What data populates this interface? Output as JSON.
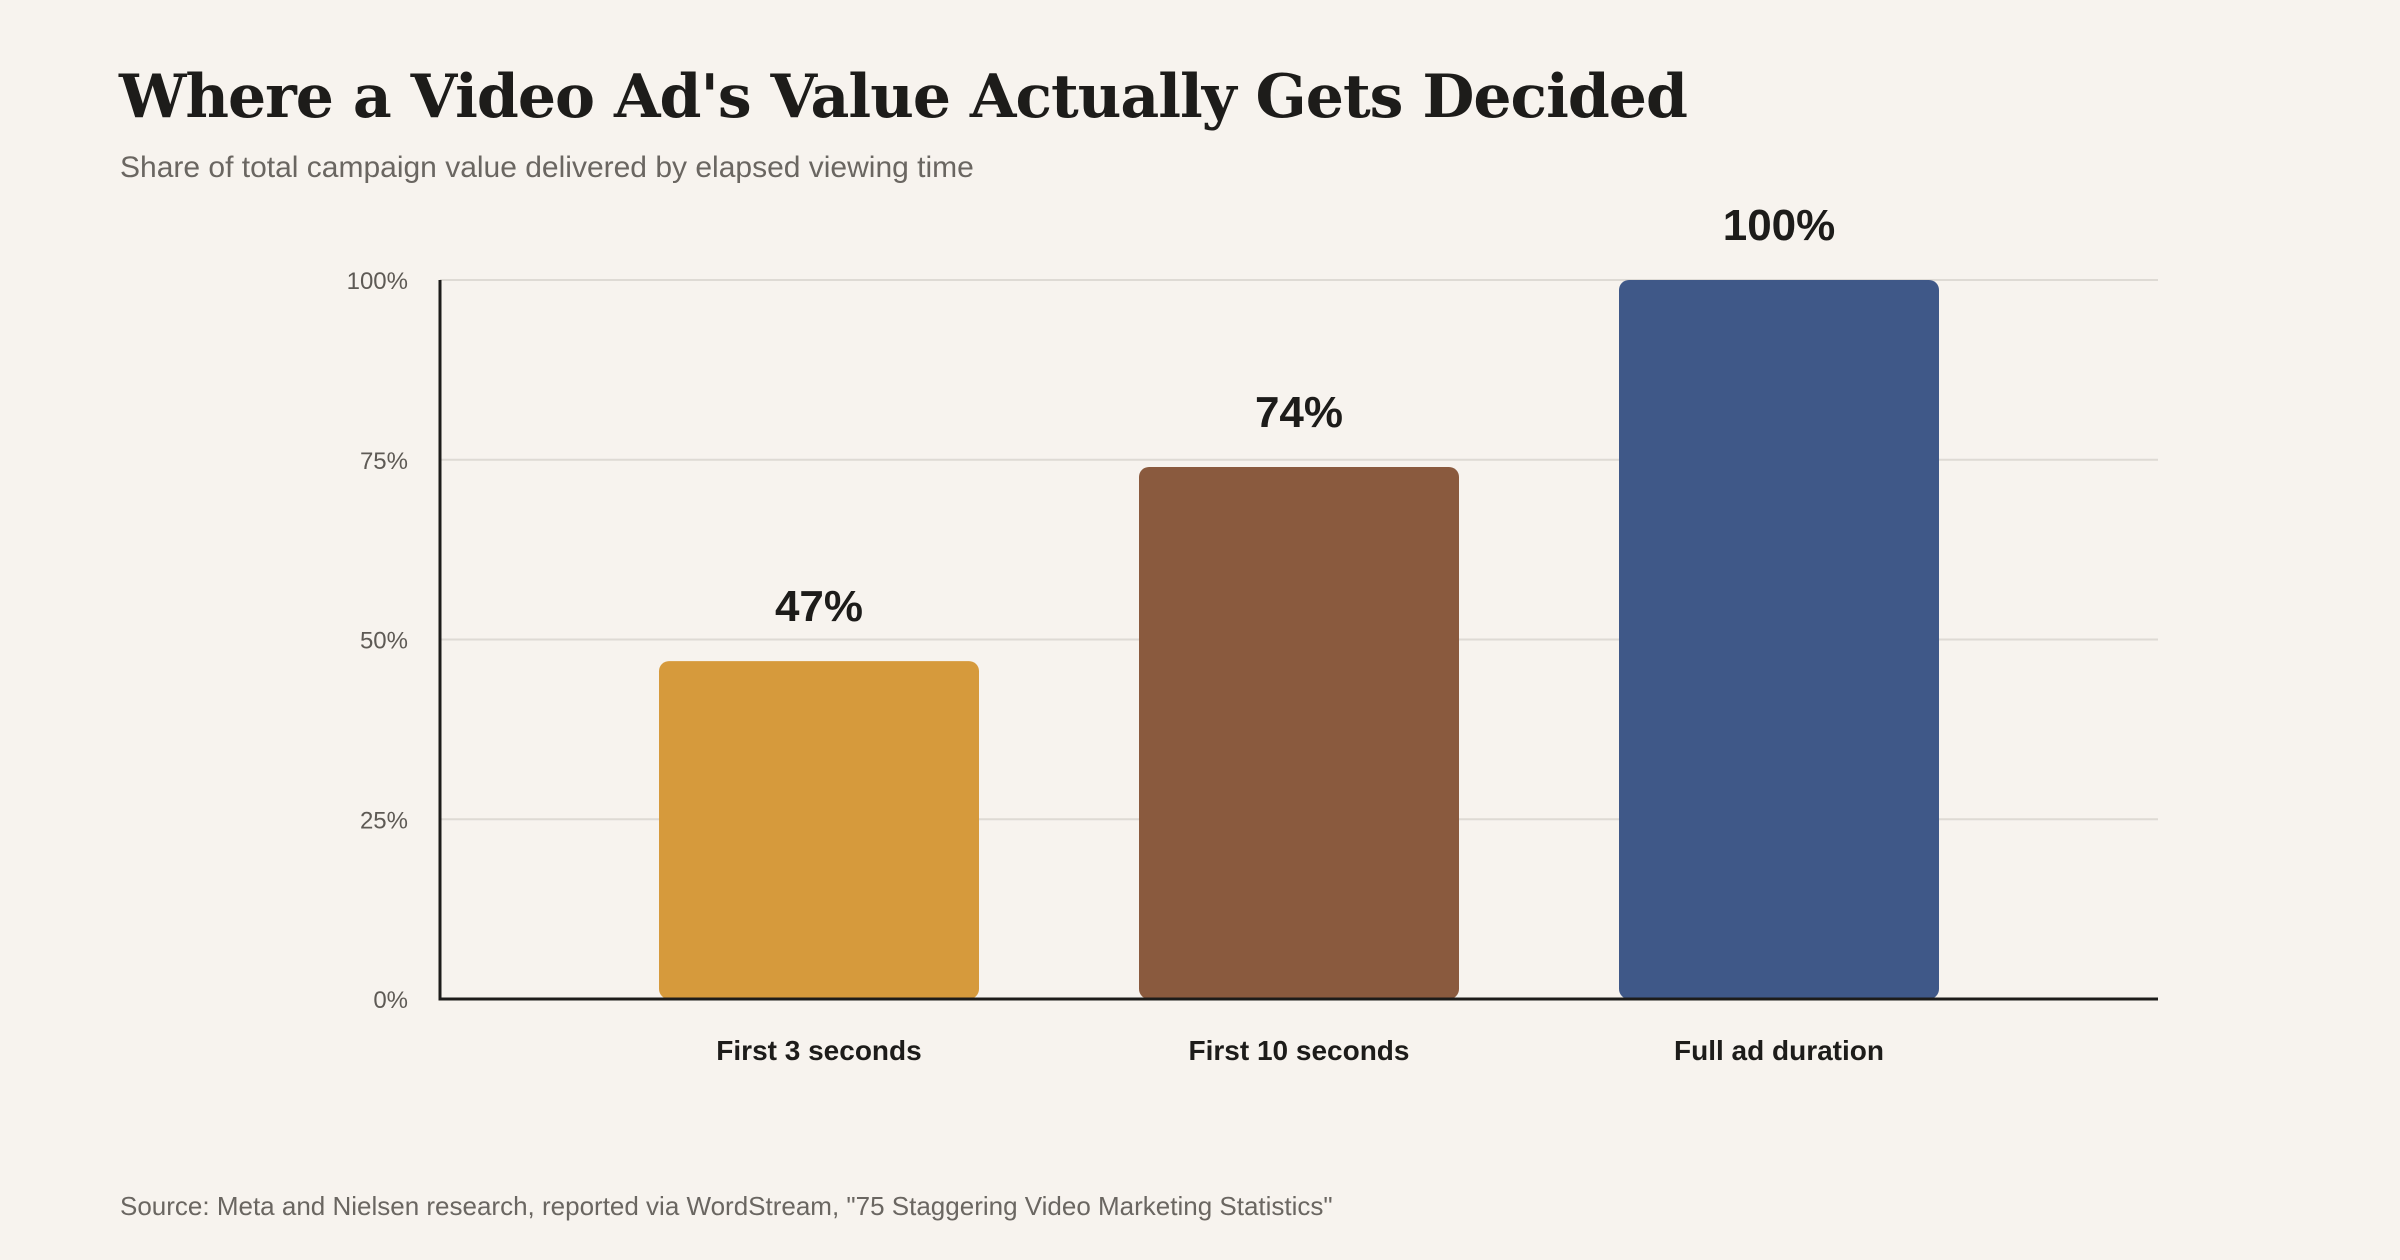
{
  "title": "Where a Video Ad's Value Actually Gets Decided",
  "subtitle": "Share of total campaign value delivered by elapsed viewing time",
  "source": "Source: Meta and Nielsen research, reported via WordStream, \"75 Staggering Video Marketing Statistics\"",
  "chart_data": {
    "type": "bar",
    "categories": [
      "First 3 seconds",
      "First 10 seconds",
      "Full ad duration"
    ],
    "values": [
      47,
      74,
      100
    ],
    "value_labels": [
      "47%",
      "74%",
      "100%"
    ],
    "colors": [
      "#d69a3c",
      "#8a5a3e",
      "#3f5888"
    ],
    "ylim": [
      0,
      100
    ],
    "y_ticks": [
      0,
      25,
      50,
      75,
      100
    ],
    "y_tick_labels": [
      "0%",
      "25%",
      "50%",
      "75%",
      "100%"
    ],
    "grid": true,
    "xlabel": "",
    "ylabel": ""
  }
}
